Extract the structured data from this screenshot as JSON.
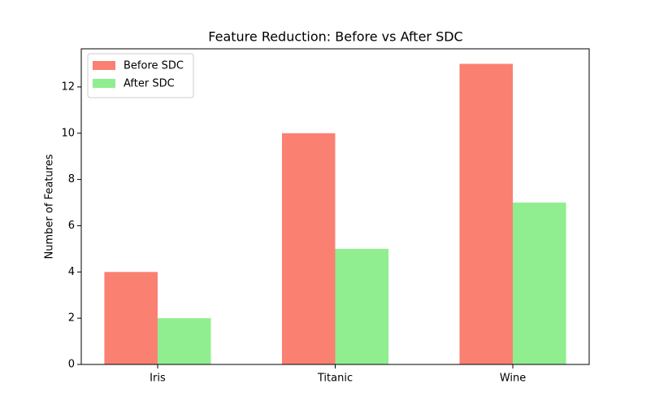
{
  "chart_data": {
    "type": "grouped-bar",
    "title": "Feature Reduction: Before vs After SDC",
    "y_label": "Number of Features",
    "categories": [
      "Iris",
      "Titanic",
      "Wine"
    ],
    "series": [
      {
        "name": "Before SDC",
        "color": "#fa8072",
        "values": [
          4,
          10,
          13
        ]
      },
      {
        "name": "After SDC",
        "color": "#90ee90",
        "values": [
          2,
          5,
          7
        ]
      }
    ],
    "ylim": [
      0,
      13.65
    ],
    "yticks": [
      0,
      2,
      4,
      6,
      8,
      10,
      12
    ],
    "legend": "upper-left",
    "grid": false
  }
}
